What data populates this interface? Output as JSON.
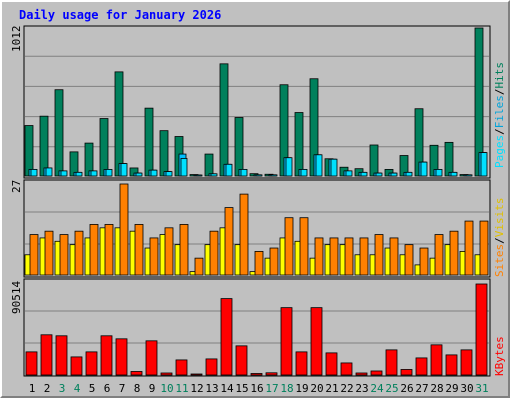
{
  "title": "Daily usage for January 2026",
  "colors": {
    "hits": "#00805c",
    "files": "#00c0ff",
    "pages": "#00e0ff",
    "visits": "#ffff00",
    "sites": "#ff8000",
    "kbytes": "#ff0000",
    "title": "#0000ff",
    "weekend_day": "#00805c",
    "weekday": "#000000"
  },
  "panels": {
    "top": {
      "max_label": "1012",
      "legend": [
        "Hits",
        "/",
        "Files",
        "/",
        "Pages"
      ]
    },
    "middle": {
      "max_label": "27",
      "legend": [
        "Visits",
        "/",
        "Sites"
      ]
    },
    "bottom": {
      "max_label": "90514",
      "legend": [
        "KBytes"
      ]
    }
  },
  "chart_data": {
    "type": "bar",
    "title": "Daily usage for January 2026",
    "categories": [
      "1",
      "2",
      "3",
      "4",
      "5",
      "6",
      "7",
      "8",
      "9",
      "10",
      "11",
      "12",
      "13",
      "14",
      "15",
      "16",
      "17",
      "18",
      "19",
      "20",
      "21",
      "22",
      "23",
      "24",
      "25",
      "26",
      "27",
      "28",
      "29",
      "30",
      "31"
    ],
    "weekend_days": [
      "3",
      "4",
      "10",
      "11",
      "17",
      "18",
      "24",
      "25",
      "31"
    ],
    "hits": {
      "ylim": [
        0,
        1012
      ],
      "series": [
        {
          "name": "Hits",
          "values": [
            345,
            409,
            590,
            165,
            225,
            393,
            712,
            55,
            464,
            310,
            270,
            10,
            150,
            767,
            400,
            16,
            12,
            624,
            434,
            665,
            118,
            60,
            50,
            212,
            45,
            140,
            460,
            210,
            230,
            10,
            1012
          ]
        },
        {
          "name": "Files",
          "values": [
            45,
            55,
            35,
            25,
            35,
            45,
            85,
            20,
            40,
            30,
            150,
            5,
            15,
            80,
            45,
            8,
            8,
            125,
            45,
            145,
            115,
            35,
            25,
            20,
            20,
            25,
            95,
            45,
            25,
            8,
            160
          ]
        },
        {
          "name": "Pages",
          "values": [
            45,
            55,
            35,
            25,
            35,
            45,
            85,
            20,
            40,
            30,
            120,
            5,
            15,
            80,
            45,
            8,
            8,
            125,
            45,
            145,
            115,
            35,
            25,
            20,
            20,
            25,
            95,
            45,
            25,
            8,
            160
          ]
        }
      ]
    },
    "visits_sites": {
      "ylim": [
        0,
        27
      ],
      "series": [
        {
          "name": "Visits",
          "values": [
            6,
            11,
            10,
            9,
            11,
            14,
            14,
            13,
            8,
            12,
            9,
            1,
            9,
            14,
            9,
            1,
            5,
            11,
            10,
            5,
            9,
            9,
            6,
            6,
            8,
            6,
            3,
            5,
            9,
            7,
            6
          ]
        },
        {
          "name": "Sites",
          "values": [
            12,
            13,
            12,
            13,
            15,
            15,
            27,
            15,
            11,
            14,
            15,
            5,
            13,
            20,
            24,
            7,
            8,
            17,
            17,
            11,
            11,
            11,
            11,
            12,
            11,
            9,
            8,
            12,
            13,
            16,
            16
          ]
        }
      ]
    },
    "kbytes": {
      "ylim": [
        0,
        90514
      ],
      "series": [
        {
          "name": "KBytes",
          "values": [
            23000,
            40000,
            39000,
            18000,
            23000,
            39000,
            36000,
            3500,
            34000,
            2000,
            15000,
            1000,
            16000,
            76000,
            29000,
            1500,
            2200,
            67000,
            23000,
            67000,
            22000,
            12000,
            2000,
            4000,
            25000,
            5500,
            17000,
            30000,
            20000,
            25000,
            90514
          ]
        }
      ]
    }
  }
}
